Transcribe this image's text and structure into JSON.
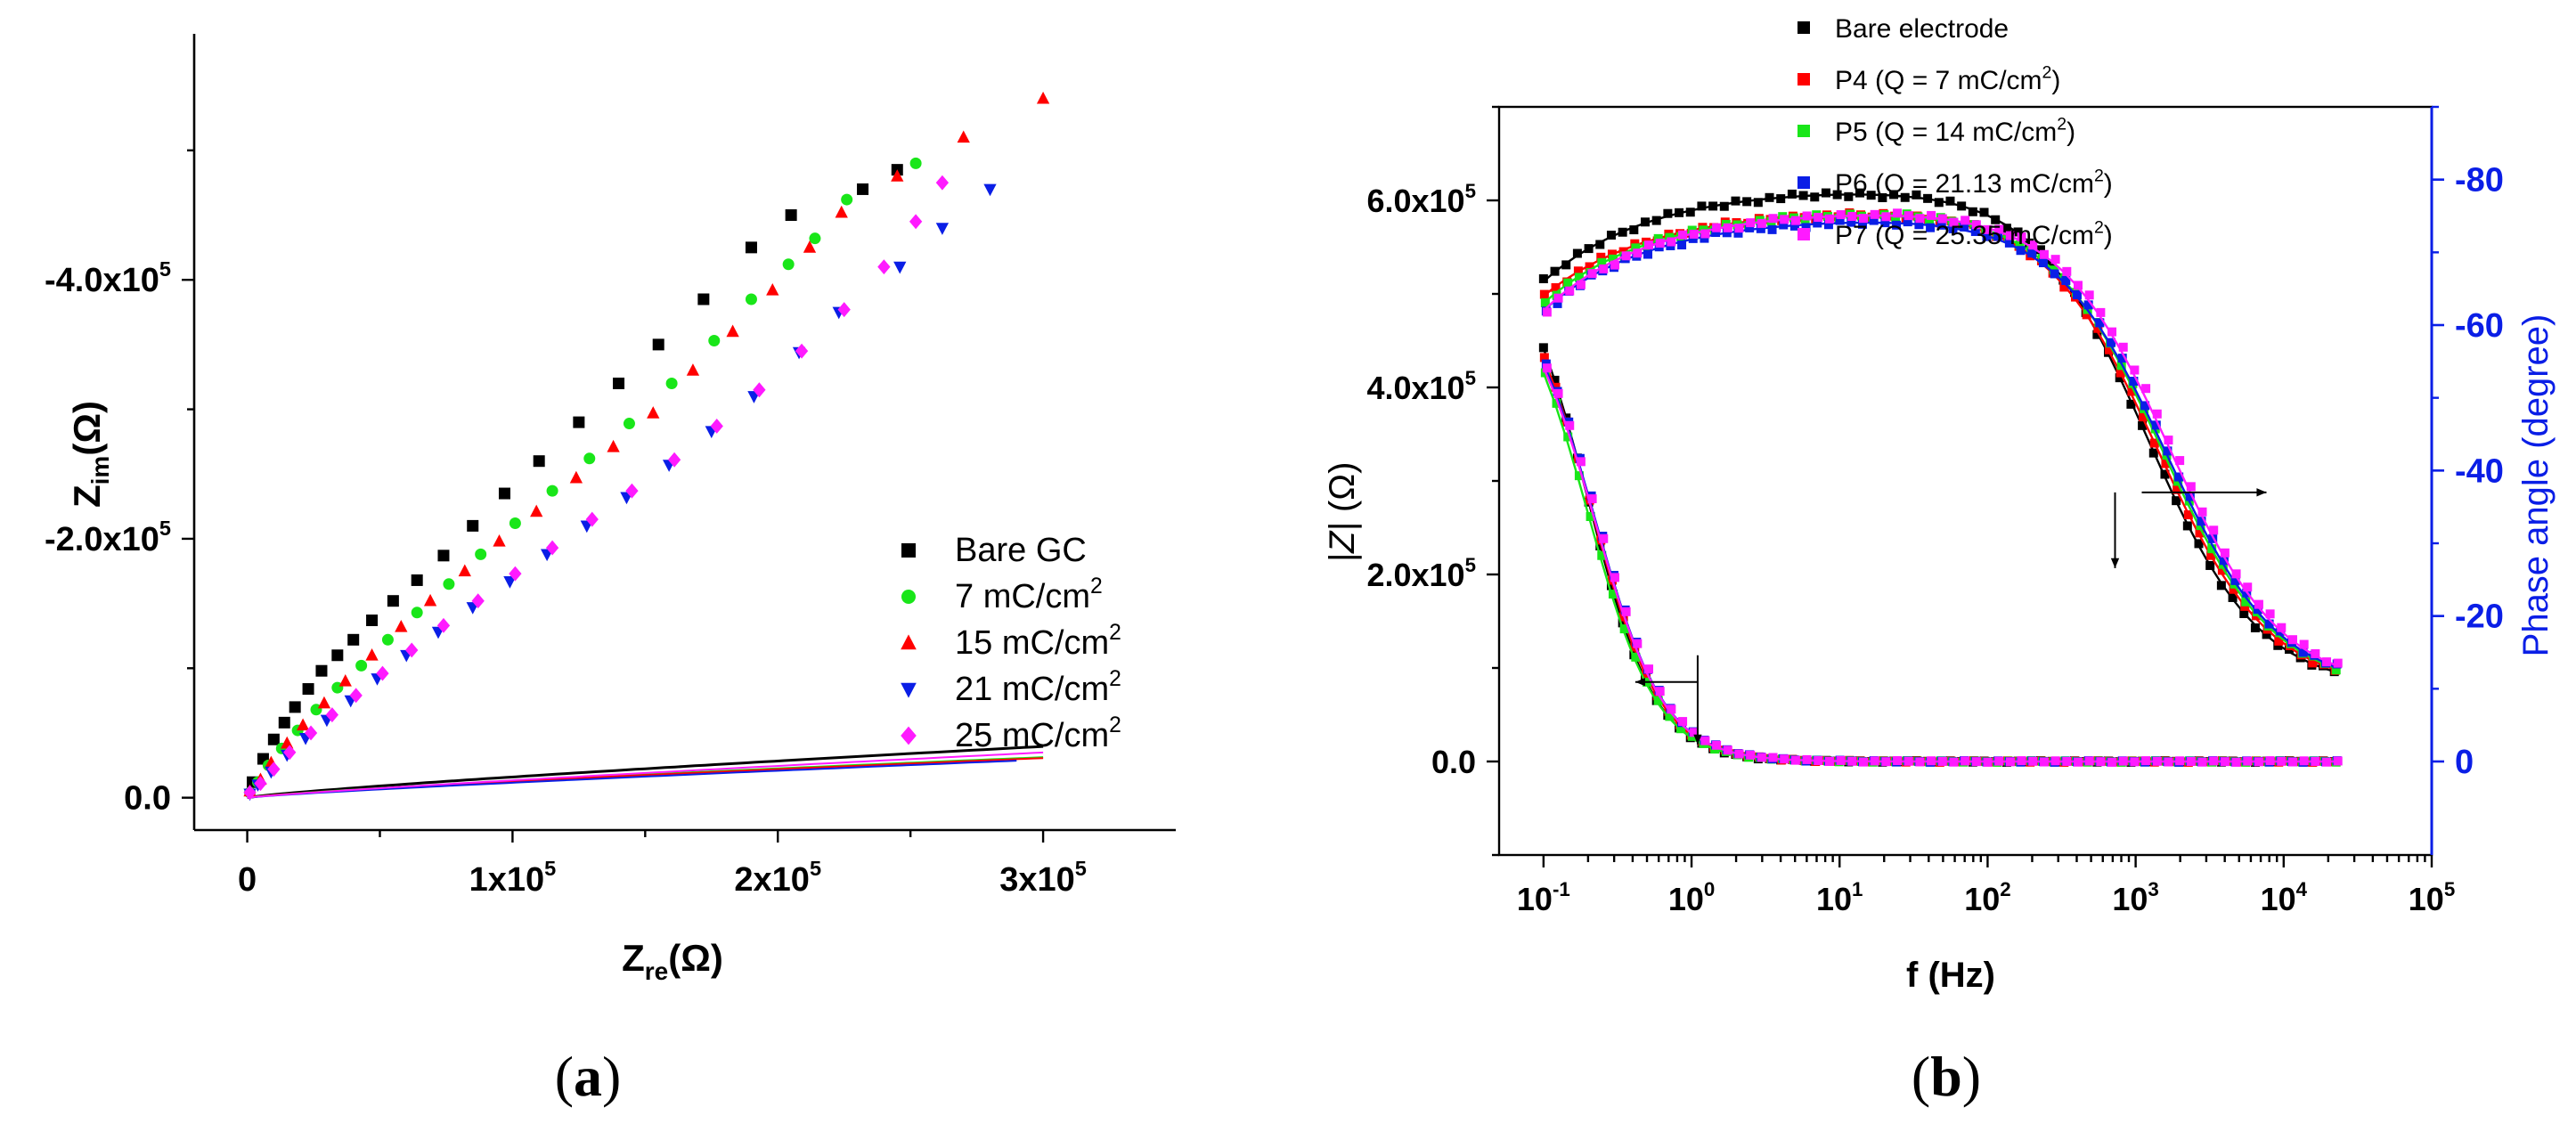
{
  "chart_data": [
    {
      "type": "scatter",
      "panel_label": "a",
      "xlabel_main": "Z",
      "xlabel_sub": "re",
      "xlabel_unit": "(Ω)",
      "ylabel_main": "Z",
      "ylabel_sub": "im",
      "ylabel_unit": "(Ω)",
      "xlim": [
        -20000,
        350000
      ],
      "ylim": [
        -590000,
        25000
      ],
      "x_ticks": [
        {
          "value": 0,
          "base": "0",
          "exp": ""
        },
        {
          "value": 100000,
          "base": "1x10",
          "exp": "5"
        },
        {
          "value": 200000,
          "base": "2x10",
          "exp": "5"
        },
        {
          "value": 300000,
          "base": "3x10",
          "exp": "5"
        }
      ],
      "y_ticks": [
        {
          "value": 0,
          "base": "0.0",
          "exp": ""
        },
        {
          "value": -200000,
          "base": "-2.0x10",
          "exp": "5"
        },
        {
          "value": -400000,
          "base": "-4.0x10",
          "exp": "5"
        }
      ],
      "legend": {
        "position": "bottom-right"
      },
      "series": [
        {
          "name": "Bare GC",
          "exp": "",
          "color": "#000000",
          "marker": "square",
          "fit": {
            "xmax": 300000,
            "A": 1.2,
            "p": 0.825
          },
          "points": [
            [
              2000,
              -12000
            ],
            [
              6000,
              -30000
            ],
            [
              10000,
              -45000
            ],
            [
              14000,
              -58000
            ],
            [
              18000,
              -70000
            ],
            [
              23000,
              -84000
            ],
            [
              28000,
              -98000
            ],
            [
              34000,
              -110000
            ],
            [
              40000,
              -122000
            ],
            [
              47000,
              -137000
            ],
            [
              55000,
              -152000
            ],
            [
              64000,
              -168000
            ],
            [
              74000,
              -187000
            ],
            [
              85000,
              -210000
            ],
            [
              97000,
              -235000
            ],
            [
              110000,
              -260000
            ],
            [
              125000,
              -290000
            ],
            [
              140000,
              -320000
            ],
            [
              155000,
              -350000
            ],
            [
              172000,
              -385000
            ],
            [
              190000,
              -425000
            ],
            [
              205000,
              -450000
            ],
            [
              232000,
              -470000
            ],
            [
              245000,
              -485000
            ]
          ]
        },
        {
          "name": "7 mC/cm",
          "exp": "2",
          "color": "#19e619",
          "marker": "circle",
          "fit": {
            "xmax": 300000,
            "A": 1.3,
            "p": 0.8
          },
          "points": [
            [
              1000,
              -4000
            ],
            [
              4000,
              -12000
            ],
            [
              8000,
              -25000
            ],
            [
              13000,
              -38000
            ],
            [
              19000,
              -52000
            ],
            [
              26000,
              -68000
            ],
            [
              34000,
              -85000
            ],
            [
              43000,
              -102000
            ],
            [
              53000,
              -122000
            ],
            [
              64000,
              -143000
            ],
            [
              76000,
              -165000
            ],
            [
              88000,
              -188000
            ],
            [
              101000,
              -212000
            ],
            [
              115000,
              -237000
            ],
            [
              129000,
              -262000
            ],
            [
              144000,
              -289000
            ],
            [
              160000,
              -320000
            ],
            [
              176000,
              -353000
            ],
            [
              190000,
              -385000
            ],
            [
              204000,
              -412000
            ],
            [
              214000,
              -432000
            ],
            [
              226000,
              -462000
            ],
            [
              252000,
              -490000
            ]
          ]
        },
        {
          "name": "15 mC/cm",
          "exp": "2",
          "color": "#ff0000",
          "marker": "triangle-up",
          "fit": {
            "xmax": 300000,
            "A": 1.12,
            "p": 0.81
          },
          "points": [
            [
              1000,
              -5000
            ],
            [
              5000,
              -14000
            ],
            [
              9000,
              -27000
            ],
            [
              15000,
              -42000
            ],
            [
              21000,
              -56000
            ],
            [
              29000,
              -73000
            ],
            [
              37000,
              -90000
            ],
            [
              47000,
              -110000
            ],
            [
              58000,
              -132000
            ],
            [
              69000,
              -152000
            ],
            [
              82000,
              -175000
            ],
            [
              95000,
              -198000
            ],
            [
              109000,
              -221000
            ],
            [
              124000,
              -247000
            ],
            [
              138000,
              -271000
            ],
            [
              153000,
              -297000
            ],
            [
              168000,
              -330000
            ],
            [
              183000,
              -360000
            ],
            [
              198000,
              -392000
            ],
            [
              212000,
              -425000
            ],
            [
              224000,
              -452000
            ],
            [
              245000,
              -480000
            ],
            [
              270000,
              -510000
            ],
            [
              300000,
              -540000
            ]
          ]
        },
        {
          "name": "21 mC/cm",
          "exp": "2",
          "color": "#0a1ee6",
          "marker": "triangle-down",
          "fit": {
            "xmax": 290000,
            "A": 0.65,
            "p": 0.85
          },
          "points": [
            [
              1000,
              -3000
            ],
            [
              4000,
              -10000
            ],
            [
              9000,
              -20000
            ],
            [
              15000,
              -33000
            ],
            [
              22000,
              -46000
            ],
            [
              30000,
              -60000
            ],
            [
              39000,
              -75000
            ],
            [
              49000,
              -92000
            ],
            [
              60000,
              -110000
            ],
            [
              72000,
              -128000
            ],
            [
              85000,
              -147000
            ],
            [
              99000,
              -167000
            ],
            [
              113000,
              -188000
            ],
            [
              128000,
              -210000
            ],
            [
              143000,
              -232000
            ],
            [
              159000,
              -257000
            ],
            [
              175000,
              -283000
            ],
            [
              191000,
              -310000
            ],
            [
              208000,
              -344000
            ],
            [
              223000,
              -375000
            ],
            [
              246000,
              -410000
            ],
            [
              262000,
              -440000
            ],
            [
              280000,
              -470000
            ]
          ]
        },
        {
          "name": "25 mC/cm",
          "exp": "2",
          "color": "#ff1aff",
          "marker": "diamond",
          "fit": {
            "xmax": 300000,
            "A": 0.6,
            "p": 0.87
          },
          "points": [
            [
              1000,
              -4000
            ],
            [
              5000,
              -11000
            ],
            [
              10000,
              -22000
            ],
            [
              16000,
              -35000
            ],
            [
              24000,
              -50000
            ],
            [
              32000,
              -64000
            ],
            [
              41000,
              -79000
            ],
            [
              51000,
              -96000
            ],
            [
              62000,
              -114000
            ],
            [
              74000,
              -133000
            ],
            [
              87000,
              -152000
            ],
            [
              101000,
              -173000
            ],
            [
              115000,
              -193000
            ],
            [
              130000,
              -215000
            ],
            [
              145000,
              -237000
            ],
            [
              161000,
              -261000
            ],
            [
              177000,
              -287000
            ],
            [
              193000,
              -315000
            ],
            [
              209000,
              -345000
            ],
            [
              225000,
              -377000
            ],
            [
              240000,
              -410000
            ],
            [
              252000,
              -445000
            ],
            [
              262000,
              -475000
            ]
          ]
        }
      ]
    },
    {
      "type": "scatter",
      "panel_label": "b",
      "xlabel": "f (Hz)",
      "ylabel_left_main": "|Z|",
      "ylabel_left_unit": "(Ω)",
      "ylabel_right": "Phase angle (degree)",
      "x_scale": "log",
      "xlim_decades": [
        -1.3,
        5
      ],
      "ylim_left": [
        -100000,
        700000
      ],
      "ylim_right": [
        0,
        -90
      ],
      "x_ticks": [
        {
          "value": 0.1,
          "base": "10",
          "exp": "-1"
        },
        {
          "value": 1,
          "base": "10",
          "exp": "0"
        },
        {
          "value": 10,
          "base": "10",
          "exp": "1"
        },
        {
          "value": 100,
          "base": "10",
          "exp": "2"
        },
        {
          "value": 1000,
          "base": "10",
          "exp": "3"
        },
        {
          "value": 10000,
          "base": "10",
          "exp": "4"
        },
        {
          "value": 100000,
          "base": "10",
          "exp": "5"
        }
      ],
      "y_left_ticks": [
        {
          "value": 0,
          "base": "0.0",
          "exp": ""
        },
        {
          "value": 200000,
          "base": "2.0x10",
          "exp": "5"
        },
        {
          "value": 400000,
          "base": "4.0x10",
          "exp": "5"
        },
        {
          "value": 600000,
          "base": "6.0x10",
          "exp": "5"
        }
      ],
      "y_right_ticks": [
        {
          "value": 0,
          "label": "0"
        },
        {
          "value": -20,
          "label": "-20"
        },
        {
          "value": -40,
          "label": "-40"
        },
        {
          "value": -60,
          "label": "-60"
        },
        {
          "value": -80,
          "label": "-80"
        }
      ],
      "legend": {
        "position": "top-right"
      },
      "series": [
        {
          "name": "Bare electrode",
          "color": "#000000",
          "modulus": {
            "Z0": 560000,
            "fc": 0.2,
            "n": 0.95
          },
          "phase": {
            "plateau": 79,
            "start": 66,
            "fc": 1200
          }
        },
        {
          "name": "P4 (Q = 7 mC/cm",
          "exp": "2",
          "tail": ")",
          "color": "#ff0000",
          "modulus": {
            "Z0": 540000,
            "fc": 0.21,
            "n": 0.93
          },
          "phase": {
            "plateau": 76,
            "start": 64,
            "fc": 1400
          }
        },
        {
          "name": "P5 (Q = 14 mC/cm",
          "exp": "2",
          "tail": ")",
          "color": "#19e619",
          "modulus": {
            "Z0": 530000,
            "fc": 0.2,
            "n": 0.93
          },
          "phase": {
            "plateau": 76,
            "start": 63,
            "fc": 1500
          }
        },
        {
          "name": "P6 (Q = 21.13 mC/cm",
          "exp": "2",
          "tail": ")",
          "color": "#0a1ee6",
          "modulus": {
            "Z0": 525000,
            "fc": 0.22,
            "n": 0.92
          },
          "phase": {
            "plateau": 75,
            "start": 62,
            "fc": 1600
          }
        },
        {
          "name": "P7 (Q = 25.35 mC/cm",
          "exp": "2",
          "tail": ")",
          "color": "#ff1aff",
          "modulus": {
            "Z0": 520000,
            "fc": 0.22,
            "n": 0.92
          },
          "phase": {
            "plateau": 76,
            "start": 62,
            "fc": 1700
          }
        }
      ]
    }
  ]
}
